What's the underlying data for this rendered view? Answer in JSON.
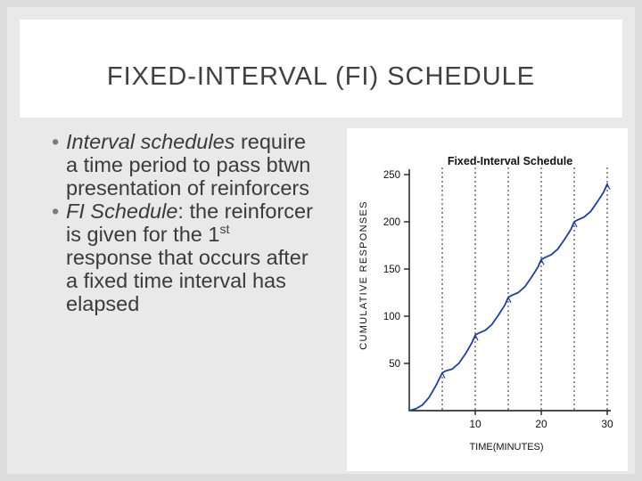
{
  "slide": {
    "title": "FIXED-INTERVAL (FI) SCHEDULE",
    "bullets": [
      {
        "italic": "Interval schedules",
        "text": " require a time period to pass btwn presentation of reinforcers"
      },
      {
        "italic": "FI Schedule",
        "text": ": the reinforcer is given for the 1",
        "sup": "st",
        "text2": " response that occurs after a fixed time interval has elapsed"
      }
    ]
  },
  "chart_data": {
    "type": "line",
    "title": "Fixed-Interval Schedule",
    "xlabel": "TIME(MINUTES)",
    "ylabel": "CUMULATIVE RESPONSES",
    "xlim": [
      0,
      30
    ],
    "ylim": [
      0,
      250
    ],
    "xticks": [
      10,
      20,
      30
    ],
    "yticks": [
      50,
      100,
      150,
      200,
      250
    ],
    "reinforcement_times": [
      5,
      10,
      15,
      20,
      25,
      30
    ],
    "reinforcement_lines": true,
    "series": [
      {
        "x": [
          0,
          1,
          2,
          3,
          4,
          5,
          5.5,
          6.5,
          7.5,
          8.5,
          9.5,
          10,
          10.5,
          11.5,
          12.5,
          13.5,
          14.5,
          15,
          15.5,
          16.5,
          17.5,
          18.5,
          19.5,
          20,
          20.5,
          21.5,
          22.5,
          23.5,
          24.5,
          25,
          25.5,
          26.5,
          27.5,
          28.5,
          29.5,
          30
        ],
        "y": [
          0,
          2,
          6,
          14,
          26,
          40,
          42,
          44,
          50,
          60,
          72,
          80,
          82,
          85,
          91,
          101,
          112,
          120,
          122,
          125,
          131,
          141,
          152,
          160,
          162,
          165,
          171,
          181,
          192,
          200,
          202,
          205,
          211,
          221,
          232,
          240
        ]
      }
    ]
  }
}
